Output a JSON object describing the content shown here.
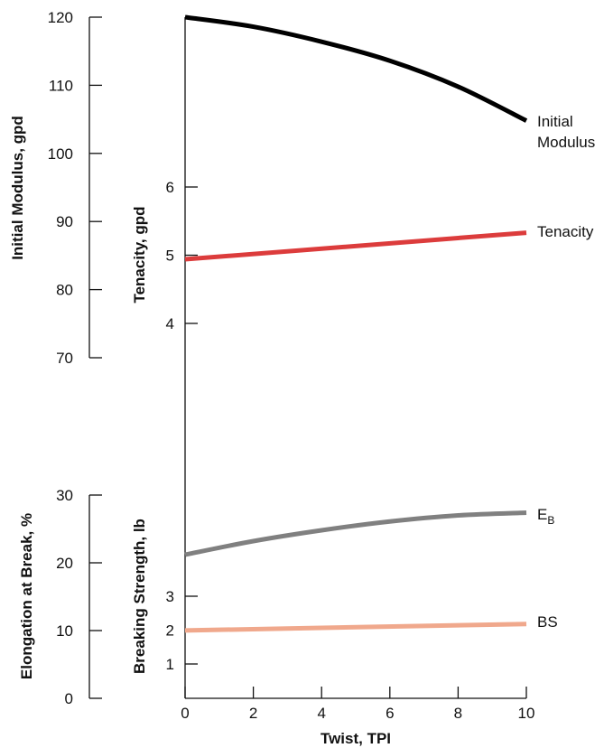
{
  "chart_data": {
    "type": "line",
    "xlabel": "Twist, TPI",
    "x_ticks": [
      "0",
      "2",
      "4",
      "6",
      "8",
      "10"
    ],
    "xlim": [
      0,
      10
    ],
    "axes": [
      {
        "id": "modulus",
        "label": "Initial Modulus, gpd",
        "ticks": [
          "70",
          "80",
          "90",
          "100",
          "110",
          "120"
        ],
        "range": [
          70,
          120
        ]
      },
      {
        "id": "tenacity",
        "label": "Tenacity, gpd",
        "ticks": [
          "4",
          "5",
          "6"
        ],
        "range": [
          4,
          6
        ]
      },
      {
        "id": "elongation",
        "label": "Elongation at Break, %",
        "ticks": [
          "0",
          "10",
          "20",
          "30"
        ],
        "range": [
          0,
          30
        ]
      },
      {
        "id": "strength",
        "label": "Breaking Strength, lb",
        "ticks": [
          "1",
          "2",
          "3"
        ],
        "range": [
          1,
          3
        ]
      }
    ],
    "series": [
      {
        "key": "modulus",
        "name": "Initial Modulus",
        "name_lines": [
          "Initial",
          "Modulus"
        ],
        "axis": "modulus",
        "color": "#000000",
        "x": [
          0,
          2,
          4,
          6,
          8,
          10
        ],
        "y": [
          120,
          118.6,
          116.4,
          113.6,
          109.8,
          104.8
        ]
      },
      {
        "key": "tenacity",
        "name": "Tenacity",
        "name_lines": [
          "Tenacity"
        ],
        "axis": "tenacity",
        "color": "#dc3c3c",
        "x": [
          0,
          10
        ],
        "y": [
          4.94,
          5.33
        ]
      },
      {
        "key": "eb",
        "name": "E",
        "subscript": "B",
        "axis": "elongation",
        "color": "#808080",
        "x": [
          0,
          2,
          4,
          6,
          8,
          10
        ],
        "y": [
          21.2,
          23.2,
          24.8,
          26.1,
          27.0,
          27.4
        ]
      },
      {
        "key": "bs",
        "name": "BS",
        "name_lines": [
          "BS"
        ],
        "axis": "strength",
        "color": "#f0a88c",
        "x": [
          0,
          10
        ],
        "y": [
          1.99,
          2.18
        ]
      }
    ]
  }
}
